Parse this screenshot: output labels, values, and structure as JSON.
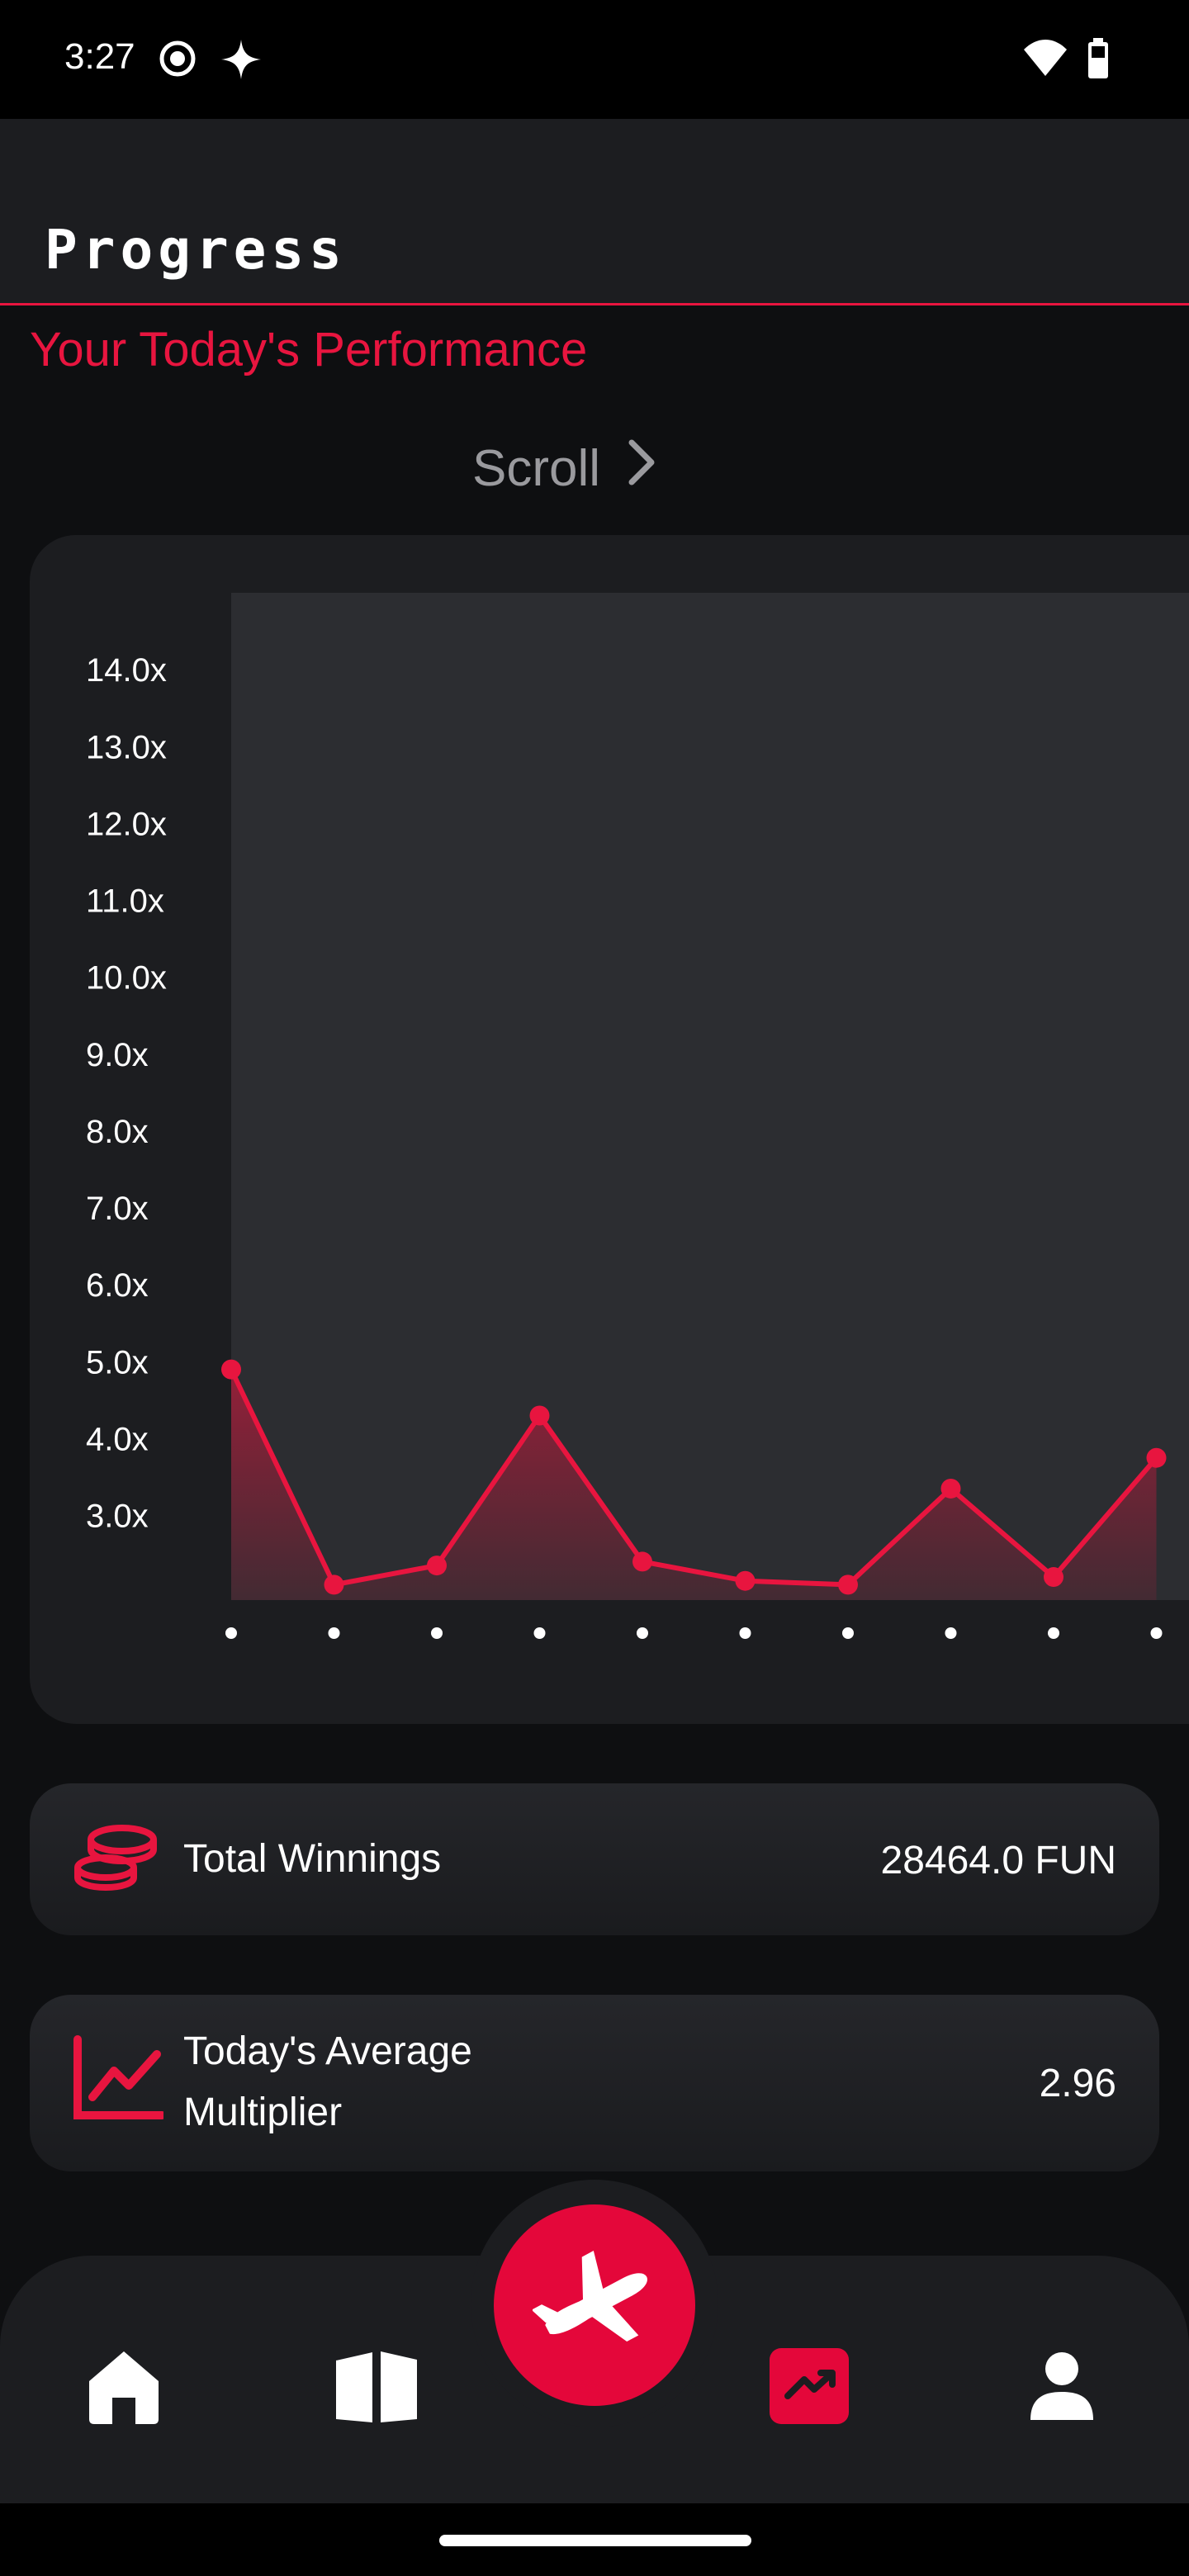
{
  "status_bar": {
    "time": "3:27",
    "icons": [
      "record-icon",
      "sparkle-icon",
      "wifi-icon",
      "battery-icon"
    ]
  },
  "header": {
    "title": "Progress"
  },
  "main": {
    "section_title": "Your Today's Performance",
    "scroll_label": "Scroll"
  },
  "chart_data": {
    "type": "area",
    "title": "",
    "xlabel": "",
    "ylabel": "",
    "y_tick_labels": [
      "14.0x",
      "13.0x",
      "12.0x",
      "11.0x",
      "10.0x",
      "9.0x",
      "8.0x",
      "7.0x",
      "6.0x",
      "5.0x",
      "4.0x",
      "3.0x"
    ],
    "ylim": [
      1.9,
      15.0
    ],
    "x_index": [
      0,
      1,
      2,
      3,
      4,
      5,
      6,
      7,
      8,
      9
    ],
    "values": [
      4.9,
      2.1,
      2.35,
      4.3,
      2.4,
      2.15,
      2.1,
      3.35,
      2.2,
      3.75
    ],
    "grid": false,
    "legend": "none",
    "colors": {
      "line": "#e8153f",
      "plot_background": "#2c2d31"
    }
  },
  "stats": {
    "total_winnings": {
      "label": "Total Winnings",
      "value": "28464.0 FUN",
      "icon": "coins-icon"
    },
    "average_multiplier": {
      "label_line1": "Today's Average",
      "label_line2": "Multiplier",
      "value": "2.96",
      "icon": "line-chart-icon"
    }
  },
  "bottom_nav": {
    "items": [
      "home-icon",
      "book-icon",
      "plane-icon",
      "trending-icon",
      "profile-icon"
    ],
    "active": "trending-icon",
    "accent": "#e4073a"
  }
}
